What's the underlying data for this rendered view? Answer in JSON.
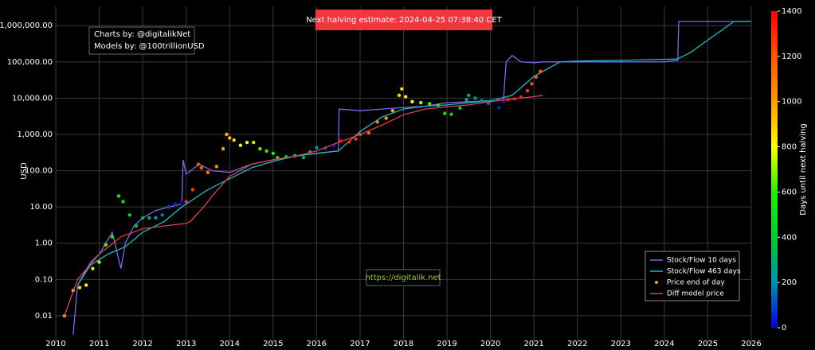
{
  "chart_data": {
    "type": "line",
    "y_label": "USD",
    "log_y": true,
    "grid": true,
    "legend_position": "bottom-right",
    "xlim": [
      2010,
      2026
    ],
    "xticks": [
      2010,
      2011,
      2012,
      2013,
      2014,
      2015,
      2016,
      2017,
      2018,
      2019,
      2020,
      2021,
      2022,
      2023,
      2024,
      2025,
      2026
    ],
    "ylim": [
      0.0017,
      3400000
    ],
    "yticks": [
      {
        "value": 0.01,
        "label": "0.01"
      },
      {
        "value": 0.1,
        "label": "0.10"
      },
      {
        "value": 1,
        "label": "1.00"
      },
      {
        "value": 10,
        "label": "10.00"
      },
      {
        "value": 100,
        "label": "100.00"
      },
      {
        "value": 1000,
        "label": "1,000.00"
      },
      {
        "value": 10000,
        "label": "10,000.00"
      },
      {
        "value": 100000,
        "label": "100,000.00"
      },
      {
        "value": 1000000,
        "label": "1,000,000.00"
      }
    ],
    "annotations": {
      "credits": [
        "Charts by: @digitalikNet",
        "Models by: @100trillionUSD"
      ],
      "halving": "Next halving estimate: 2024-04-25 07:38:40 CET",
      "url": "https://digitalik.net"
    },
    "colorbar": {
      "label": "Days until next halving",
      "clim": [
        0,
        1400
      ],
      "ticks": [
        0,
        200,
        400,
        600,
        800,
        1000,
        1200,
        1400
      ],
      "colors": [
        "#0000dd",
        "#0090b0",
        "#00cc30",
        "#22ee00",
        "#ffff00",
        "#ff9900",
        "#ff5500",
        "#ff0000"
      ]
    },
    "series": [
      {
        "name": "Stock/Flow 10 days",
        "type": "line",
        "color": "#7b68ee",
        "x": [
          2010.4,
          2010.5,
          2010.8,
          2011.0,
          2011.3,
          2011.5,
          2011.6,
          2011.8,
          2012.0,
          2012.3,
          2012.6,
          2012.9,
          2012.93,
          2013.0,
          2013.3,
          2013.6,
          2014.0,
          2014.5,
          2015.0,
          2015.5,
          2016.0,
          2016.5,
          2016.52,
          2017.0,
          2017.5,
          2018.0,
          2018.5,
          2019.0,
          2019.5,
          2020.0,
          2020.3,
          2020.36,
          2020.5,
          2020.7,
          2021.0,
          2021.2,
          2024.0,
          2024.31,
          2024.33,
          2026.0
        ],
        "values": [
          0.003,
          0.07,
          0.3,
          0.5,
          2.0,
          0.2,
          1.0,
          3,
          5,
          8,
          10,
          12,
          200,
          80,
          150,
          100,
          90,
          150,
          200,
          250,
          300,
          350,
          5000,
          4500,
          5000,
          5500,
          6000,
          7500,
          8000,
          8500,
          9000,
          100000,
          150000,
          100000,
          95000,
          100000,
          100000,
          110000,
          1300000,
          1300000
        ]
      },
      {
        "name": "Stock/Flow 463 days",
        "type": "line",
        "color": "#20b8c8",
        "x": [
          2010.5,
          2010.8,
          2011.2,
          2011.6,
          2012.0,
          2012.5,
          2012.9,
          2013.5,
          2014.0,
          2014.5,
          2015.0,
          2015.5,
          2016.0,
          2016.5,
          2017.0,
          2017.5,
          2018.0,
          2018.5,
          2019.0,
          2019.5,
          2020.0,
          2020.5,
          2021.0,
          2021.6,
          2022.0,
          2023.0,
          2024.3,
          2024.6,
          2025.0,
          2025.6,
          2026.0
        ],
        "values": [
          0.07,
          0.25,
          0.5,
          0.8,
          2,
          4,
          10,
          30,
          60,
          120,
          180,
          250,
          300,
          350,
          1200,
          3000,
          5000,
          6000,
          6500,
          7500,
          8500,
          12000,
          40000,
          100000,
          105000,
          110000,
          120000,
          180000,
          400000,
          1300000,
          1300000
        ]
      },
      {
        "name": "Price end of day",
        "type": "scatter",
        "color": "#ff9900",
        "x": [
          2010.2,
          2010.4,
          2010.55,
          2010.7,
          2010.85,
          2011.0,
          2011.15,
          2011.3,
          2011.45,
          2011.55,
          2011.7,
          2011.85,
          2012.0,
          2012.15,
          2012.3,
          2012.45,
          2012.6,
          2012.75,
          2012.9,
          2013.0,
          2013.15,
          2013.28,
          2013.35,
          2013.5,
          2013.7,
          2013.85,
          2013.93,
          2014.0,
          2014.1,
          2014.25,
          2014.4,
          2014.55,
          2014.7,
          2014.85,
          2015.0,
          2015.1,
          2015.3,
          2015.5,
          2015.7,
          2015.85,
          2016.0,
          2016.2,
          2016.4,
          2016.55,
          2016.75,
          2016.9,
          2017.0,
          2017.2,
          2017.4,
          2017.6,
          2017.75,
          2017.9,
          2017.96,
          2018.05,
          2018.2,
          2018.4,
          2018.6,
          2018.8,
          2018.95,
          2019.1,
          2019.3,
          2019.45,
          2019.5,
          2019.65,
          2019.8,
          2019.95,
          2020.1,
          2020.2,
          2020.3,
          2020.4,
          2020.55,
          2020.7,
          2020.85,
          2020.95,
          2021.05,
          2021.15
        ],
        "values": [
          0.01,
          0.05,
          0.06,
          0.07,
          0.2,
          0.3,
          0.9,
          1.5,
          20,
          14,
          6,
          3,
          5,
          5,
          5,
          6,
          10,
          12,
          13,
          14,
          30,
          150,
          120,
          90,
          130,
          400,
          1000,
          800,
          700,
          500,
          600,
          600,
          400,
          350,
          300,
          230,
          240,
          260,
          230,
          330,
          430,
          420,
          500,
          660,
          620,
          750,
          1000,
          1100,
          2200,
          2800,
          4500,
          12000,
          18000,
          11000,
          8000,
          7500,
          7000,
          6400,
          3800,
          3600,
          5300,
          9000,
          12000,
          10000,
          8500,
          7200,
          9000,
          5500,
          8000,
          9000,
          9500,
          10700,
          16000,
          25000,
          38000,
          55000
        ],
        "days": [
          990,
          920,
          862,
          808,
          752,
          697,
          643,
          588,
          533,
          497,
          442,
          387,
          332,
          278,
          223,
          168,
          113,
          58,
          4,
          1286,
          1231,
          1184,
          1158,
          1103,
          1030,
          976,
          946,
          920,
          884,
          829,
          774,
          720,
          665,
          610,
          555,
          519,
          446,
          373,
          300,
          245,
          190,
          117,
          44,
          1392,
          1319,
          1264,
          1227,
          1154,
          1081,
          1008,
          953,
          899,
          877,
          844,
          789,
          716,
          643,
          570,
          515,
          460,
          387,
          332,
          314,
          259,
          204,
          150,
          95,
          58,
          22,
          1428,
          1373,
          1318,
          1264,
          1227,
          1190,
          1154
        ]
      },
      {
        "name": "Diff model price",
        "type": "line",
        "color": "#e04050",
        "x": [
          2010.2,
          2010.5,
          2011.0,
          2011.5,
          2012.0,
          2012.5,
          2013.0,
          2013.1,
          2013.4,
          2013.6,
          2014.0,
          2014.5,
          2015.0,
          2015.5,
          2016.0,
          2016.5,
          2017.0,
          2017.5,
          2018.0,
          2018.5,
          2019.0,
          2019.5,
          2020.0,
          2020.5,
          2021.0,
          2021.2
        ],
        "values": [
          0.01,
          0.1,
          0.5,
          1.5,
          2.5,
          3.0,
          3.5,
          4,
          10,
          20,
          70,
          150,
          200,
          250,
          350,
          600,
          1000,
          1800,
          3500,
          5000,
          5800,
          6500,
          8000,
          9500,
          11000,
          12000
        ]
      }
    ]
  }
}
